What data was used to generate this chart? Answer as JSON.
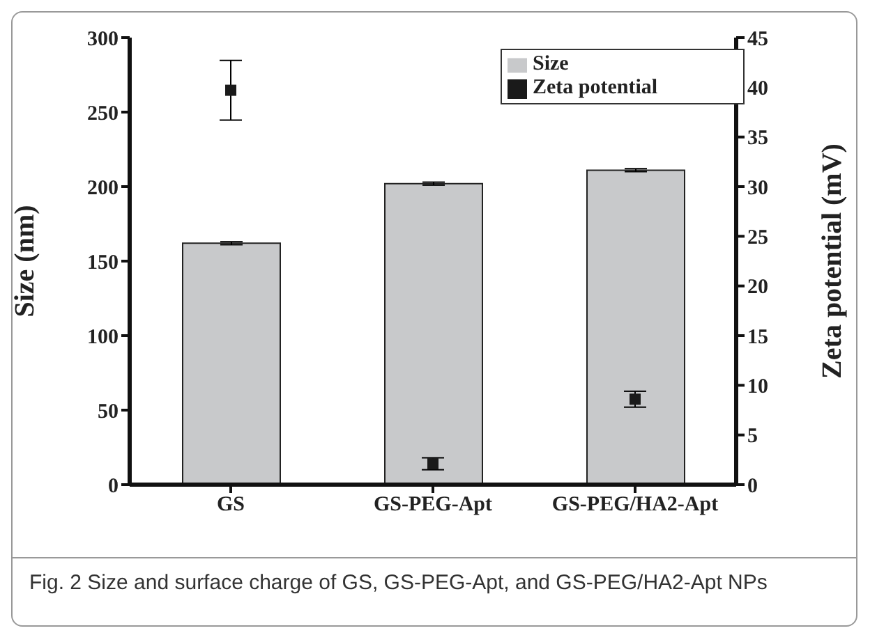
{
  "chart_data": {
    "type": "bar",
    "categories": [
      "GS",
      "GS-PEG-Apt",
      "GS-PEG/HA2-Apt"
    ],
    "ylabel": "Size (nm)",
    "y2label": "Zeta potential (mV)",
    "ylim": [
      0,
      300
    ],
    "yticks": [
      0,
      50,
      100,
      150,
      200,
      250,
      300
    ],
    "y2lim": [
      0,
      45
    ],
    "y2ticks": [
      0,
      5,
      10,
      15,
      20,
      25,
      30,
      35,
      40,
      45
    ],
    "legend": "top right",
    "marker": "square",
    "series": [
      {
        "name": "Size",
        "color": "#c8c9cb",
        "values": [
          162,
          202,
          211
        ],
        "errors": [
          1,
          1,
          1
        ]
      },
      {
        "name": "Zeta potential",
        "type": "scatter",
        "axis": "y2",
        "color": "#1a1a1a",
        "values": [
          39.7,
          2.1,
          8.6
        ],
        "errors": [
          3,
          0.6,
          0.8
        ]
      }
    ],
    "annotations": [
      "Fig. 2 Size and surface charge of GS, GS-PEG-Apt, and GS-PEG/HA2-Apt NPs"
    ]
  }
}
